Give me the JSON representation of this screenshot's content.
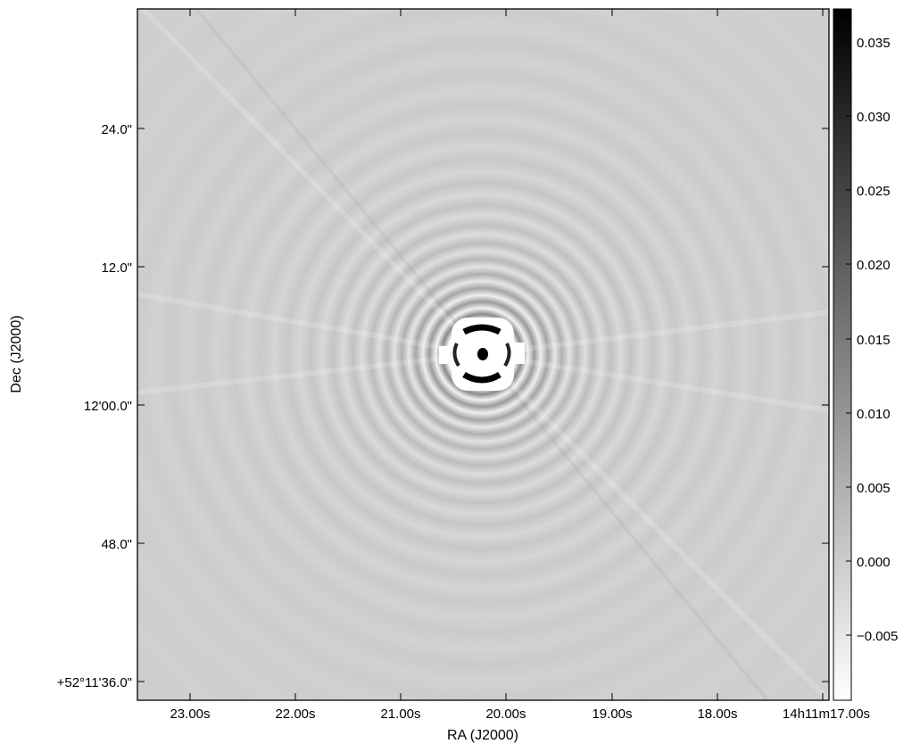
{
  "figure": {
    "xlabel": "RA (J2000)",
    "ylabel": "Dec (J2000)",
    "x_ticks": [
      "23.00s",
      "22.00s",
      "21.00s",
      "20.00s",
      "19.00s",
      "18.00s",
      "14h11m17.00s"
    ],
    "y_ticks": [
      "24.0\"",
      "12.0\"",
      "12'00.0\"",
      "48.0\"",
      "+52°11'36.0\""
    ],
    "colormap": "grayscale (white = low, black = high)",
    "colorbar": {
      "ticks": [
        "0.035",
        "0.030",
        "0.025",
        "0.020",
        "0.015",
        "0.010",
        "0.005",
        "0.000",
        "−0.005"
      ],
      "range": [
        -0.0095,
        0.0372
      ]
    },
    "image_content": "radio interferometric image: bright point source at center surrounded by concentric sidelobe rings and radial spokes"
  }
}
